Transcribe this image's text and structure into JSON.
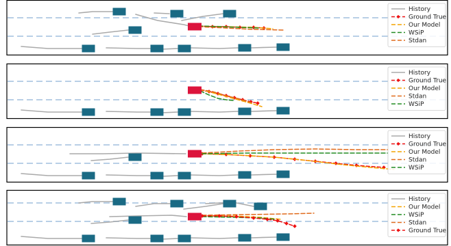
{
  "colors": {
    "lane": "#b8cfe6",
    "vehicle": "#1a6a84",
    "target": "#dc143c",
    "history": "#aaaaaa",
    "ground_true": "#ee1111",
    "our_model": "#f4a300",
    "wsip": "#228b22",
    "stdan": "#e06a1b",
    "frame": "#000000"
  },
  "chart_data": [
    {
      "type": "line",
      "panel": 1,
      "legend": [
        "History",
        "Ground True",
        "Our Model",
        "WSiP",
        "Stdan"
      ],
      "legend_placement": "right",
      "xlim": [
        0,
        658
      ],
      "ylim": [
        0,
        80
      ],
      "lanes_y": [
        26,
        53
      ],
      "vehicles": [
        [
          174,
          17
        ],
        [
          258,
          20
        ],
        [
          335,
          20
        ],
        [
          197,
          44
        ],
        [
          129,
          71
        ],
        [
          229,
          71
        ],
        [
          269,
          71
        ],
        [
          357,
          70
        ],
        [
          413,
          69
        ]
      ],
      "target": [
        284,
        39
      ],
      "series": [
        {
          "name": "History",
          "lines": [
            [
              [
                115,
                19
              ],
              [
                135,
                17
              ],
              [
                164,
                17
              ]
            ],
            [
              [
                225,
                19
              ],
              [
                247,
                20
              ]
            ],
            [
              [
                198,
                21
              ],
              [
                230,
                30
              ],
              [
                268,
                36
              ],
              [
                280,
                39
              ]
            ],
            [
              [
                265,
                30
              ],
              [
                296,
                24
              ],
              [
                326,
                20
              ]
            ],
            [
              [
                135,
                50
              ],
              [
                160,
                47
              ],
              [
                187,
                44
              ]
            ],
            [
              [
                31,
                68
              ],
              [
                70,
                71
              ],
              [
                119,
                71
              ]
            ],
            [
              [
                155,
                70
              ],
              [
                200,
                71
              ],
              [
                219,
                71
              ]
            ],
            [
              [
                236,
                72
              ],
              [
                259,
                71
              ]
            ],
            [
              [
                277,
                70
              ],
              [
                320,
                71
              ],
              [
                347,
                70
              ]
            ],
            [
              [
                367,
                70
              ],
              [
                403,
                69
              ]
            ]
          ]
        },
        {
          "name": "Ground True",
          "points": [
            [
              290,
              38
            ],
            [
              310,
              39
            ],
            [
              330,
              39
            ],
            [
              350,
              40
            ],
            [
              370,
              40
            ],
            [
              385,
              41
            ]
          ]
        },
        {
          "name": "Our Model",
          "points": [
            [
              290,
              38
            ],
            [
              330,
              39
            ],
            [
              370,
              40
            ],
            [
              398,
              42
            ]
          ]
        },
        {
          "name": "WSiP",
          "points": [
            [
              290,
              38
            ],
            [
              320,
              39
            ],
            [
              350,
              40
            ],
            [
              378,
              41
            ]
          ]
        },
        {
          "name": "Stdan",
          "points": [
            [
              290,
              39
            ],
            [
              330,
              41
            ],
            [
              370,
              43
            ],
            [
              415,
              44
            ]
          ]
        }
      ]
    },
    {
      "type": "line",
      "panel": 2,
      "legend": [
        "History",
        "Ground True",
        "Our Model",
        "Stdan",
        "WSiP"
      ],
      "legend_placement": "right",
      "xlim": [
        0,
        658
      ],
      "ylim": [
        0,
        80
      ],
      "lanes_y": [
        26,
        53
      ],
      "vehicles": [
        [
          129,
          71
        ],
        [
          229,
          71
        ],
        [
          269,
          71
        ],
        [
          357,
          70
        ],
        [
          413,
          69
        ]
      ],
      "target": [
        284,
        39
      ],
      "series": [
        {
          "name": "History",
          "lines": [
            [
              [
                31,
                68
              ],
              [
                70,
                71
              ],
              [
                119,
                71
              ]
            ],
            [
              [
                155,
                70
              ],
              [
                200,
                71
              ],
              [
                219,
                71
              ]
            ],
            [
              [
                236,
                72
              ],
              [
                259,
                71
              ]
            ],
            [
              [
                277,
                70
              ],
              [
                320,
                71
              ],
              [
                347,
                70
              ]
            ],
            [
              [
                367,
                70
              ],
              [
                403,
                69
              ]
            ]
          ]
        },
        {
          "name": "Ground True",
          "points": [
            [
              292,
              39
            ],
            [
              305,
              41
            ],
            [
              318,
              44
            ],
            [
              330,
              47
            ],
            [
              342,
              50
            ],
            [
              354,
              53
            ],
            [
              366,
              56
            ],
            [
              376,
              58
            ]
          ]
        },
        {
          "name": "Our Model",
          "points": [
            [
              292,
              38
            ],
            [
              315,
              44
            ],
            [
              340,
              51
            ],
            [
              362,
              57
            ],
            [
              382,
              63
            ]
          ]
        },
        {
          "name": "Stdan",
          "points": [
            [
              292,
              38
            ],
            [
              310,
              41
            ],
            [
              330,
              47
            ],
            [
              350,
              52
            ],
            [
              366,
              57
            ]
          ]
        },
        {
          "name": "WSiP",
          "points": [
            [
              292,
              40
            ],
            [
              305,
              46
            ],
            [
              318,
              51
            ],
            [
              330,
              53
            ],
            [
              340,
              54
            ]
          ]
        }
      ]
    },
    {
      "type": "line",
      "panel": 3,
      "legend": [
        "History",
        "Ground True",
        "Our Model",
        "Stdan",
        "WSiP"
      ],
      "legend_placement": "right",
      "xlim": [
        0,
        658
      ],
      "ylim": [
        0,
        80
      ],
      "lanes_y": [
        26,
        53
      ],
      "vehicles": [
        [
          197,
          44
        ],
        [
          129,
          71
        ],
        [
          229,
          71
        ],
        [
          269,
          71
        ],
        [
          357,
          70
        ],
        [
          413,
          69
        ]
      ],
      "target": [
        284,
        39
      ],
      "series": [
        {
          "name": "History",
          "lines": [
            [
              [
                102,
                39
              ],
              [
                150,
                39
              ],
              [
                200,
                38
              ],
              [
                271,
                39
              ]
            ],
            [
              [
                133,
                49
              ],
              [
                160,
                47
              ],
              [
                187,
                44
              ]
            ],
            [
              [
                31,
                68
              ],
              [
                70,
                71
              ],
              [
                119,
                71
              ]
            ],
            [
              [
                155,
                70
              ],
              [
                200,
                71
              ],
              [
                219,
                71
              ]
            ],
            [
              [
                236,
                72
              ],
              [
                259,
                71
              ]
            ],
            [
              [
                277,
                70
              ],
              [
                320,
                71
              ],
              [
                347,
                70
              ]
            ],
            [
              [
                367,
                70
              ],
              [
                403,
                69
              ]
            ]
          ]
        },
        {
          "name": "Ground True",
          "points": [
            [
              295,
              39
            ],
            [
              330,
              40
            ],
            [
              365,
              42
            ],
            [
              400,
              44
            ],
            [
              430,
              47
            ],
            [
              460,
              50
            ],
            [
              490,
              53
            ],
            [
              520,
              56
            ],
            [
              560,
              59
            ]
          ]
        },
        {
          "name": "Our Model",
          "points": [
            [
              295,
              39
            ],
            [
              350,
              41
            ],
            [
              400,
              44
            ],
            [
              450,
              49
            ],
            [
              500,
              55
            ],
            [
              540,
              59
            ],
            [
              575,
              62
            ]
          ]
        },
        {
          "name": "Stdan",
          "points": [
            [
              295,
              38
            ],
            [
              350,
              35
            ],
            [
              400,
              33
            ],
            [
              460,
              32
            ],
            [
              520,
              33
            ],
            [
              566,
              33
            ]
          ]
        },
        {
          "name": "WSiP",
          "points": [
            [
              295,
              39
            ],
            [
              360,
              38
            ],
            [
              430,
              38
            ],
            [
              500,
              38
            ],
            [
              566,
              38
            ]
          ]
        }
      ]
    },
    {
      "type": "line",
      "panel": 4,
      "legend": [
        "History",
        "Our Model",
        "WSiP",
        "Stdan",
        "Ground True"
      ],
      "legend_placement": "right",
      "xlim": [
        0,
        658
      ],
      "ylim": [
        0,
        80
      ],
      "lanes_y": [
        19,
        46
      ],
      "vehicles": [
        [
          174,
          17
        ],
        [
          258,
          20
        ],
        [
          335,
          20
        ],
        [
          380,
          24
        ],
        [
          197,
          44
        ],
        [
          129,
          71
        ],
        [
          229,
          71
        ],
        [
          269,
          71
        ],
        [
          357,
          70
        ],
        [
          413,
          69
        ]
      ],
      "target": [
        284,
        39
      ],
      "series": [
        {
          "name": "History",
          "lines": [
            [
              [
                115,
                19
              ],
              [
                135,
                17
              ],
              [
                164,
                17
              ]
            ],
            [
              [
                198,
                24
              ],
              [
                225,
                20
              ],
              [
                248,
                20
              ]
            ],
            [
              [
                268,
                28
              ],
              [
                300,
                24
              ],
              [
                326,
                20
              ]
            ],
            [
              [
                300,
                20
              ],
              [
                340,
                18
              ],
              [
                360,
                22
              ],
              [
                370,
                24
              ]
            ],
            [
              [
                160,
                39
              ],
              [
                200,
                38
              ],
              [
                250,
                37
              ],
              [
                272,
                39
              ]
            ],
            [
              [
                133,
                49
              ],
              [
                160,
                47
              ],
              [
                187,
                44
              ]
            ],
            [
              [
                31,
                68
              ],
              [
                70,
                71
              ],
              [
                119,
                71
              ]
            ],
            [
              [
                155,
                70
              ],
              [
                200,
                71
              ],
              [
                219,
                71
              ]
            ],
            [
              [
                236,
                72
              ],
              [
                259,
                71
              ]
            ],
            [
              [
                277,
                70
              ],
              [
                320,
                71
              ],
              [
                347,
                70
              ]
            ],
            [
              [
                367,
                70
              ],
              [
                403,
                69
              ]
            ]
          ]
        },
        {
          "name": "Our Model",
          "points": [
            [
              295,
              38
            ],
            [
              340,
              38
            ],
            [
              380,
              40
            ],
            [
              410,
              43
            ]
          ]
        },
        {
          "name": "WSiP",
          "points": [
            [
              295,
              39
            ],
            [
              340,
              40
            ],
            [
              380,
              41
            ],
            [
              402,
              43
            ]
          ]
        },
        {
          "name": "Stdan",
          "points": [
            [
              295,
              37
            ],
            [
              360,
              36
            ],
            [
              420,
              35
            ],
            [
              458,
              34
            ]
          ]
        },
        {
          "name": "Ground True",
          "points": [
            [
              295,
              38
            ],
            [
              320,
              38
            ],
            [
              345,
              39
            ],
            [
              370,
              41
            ],
            [
              390,
              43
            ],
            [
              405,
              45
            ],
            [
              418,
              49
            ],
            [
              430,
              53
            ]
          ]
        }
      ]
    }
  ]
}
